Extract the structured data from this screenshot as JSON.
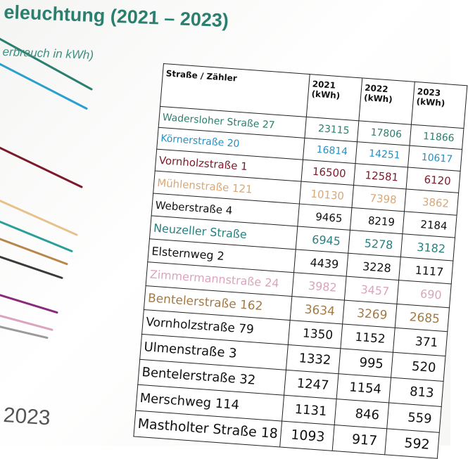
{
  "title": "eleuchtung (2021 – 2023)",
  "subtitle": "erbrauch in kWh)",
  "chart_x_label": "2023",
  "chart_data": {
    "type": "table",
    "columns": [
      "Straße / Zähler",
      "2021 (kWh)",
      "2022 (kWh)",
      "2023 (kWh)"
    ],
    "rows": [
      {
        "name": "Wadersloher Straße 27",
        "v2021": "23115",
        "v2022": "17806",
        "v2023": "11866",
        "color": "#2a7f6f"
      },
      {
        "name": "Körnerstraße 20",
        "v2021": "16814",
        "v2022": "14251",
        "v2023": "10617",
        "color": "#2a8fc0"
      },
      {
        "name": "Vornholzstraße 1",
        "v2021": "16500",
        "v2022": "12581",
        "v2023": "6120",
        "color": "#7a1a2a"
      },
      {
        "name": "Mühlenstraße 121",
        "v2021": "10130",
        "v2022": "7398",
        "v2023": "3862",
        "color": "#d8a878"
      },
      {
        "name": "Weberstraße 4",
        "v2021": "9465",
        "v2022": "8219",
        "v2023": "2184",
        "color": "#111111"
      },
      {
        "name": "Neuzeller Straße",
        "v2021": "6945",
        "v2022": "5278",
        "v2023": "3182",
        "color": "#2a7f80"
      },
      {
        "name": "Elsternweg 2",
        "v2021": "4439",
        "v2022": "3228",
        "v2023": "1117",
        "color": "#111111"
      },
      {
        "name": "Zimmermannstraße 24",
        "v2021": "3982",
        "v2022": "3457",
        "v2023": "690",
        "color": "#dba3bd"
      },
      {
        "name": "Bentelerstraße 162",
        "v2021": "3634",
        "v2022": "3269",
        "v2023": "2685",
        "color": "#a27a46"
      },
      {
        "name": "Vornholzstraße 79",
        "v2021": "1350",
        "v2022": "1152",
        "v2023": "371",
        "color": "#111111"
      },
      {
        "name": "Ulmenstraße 3",
        "v2021": "1332",
        "v2022": "995",
        "v2023": "520",
        "color": "#111111"
      },
      {
        "name": "Bentelerstraße 32",
        "v2021": "1247",
        "v2022": "1154",
        "v2023": "813",
        "color": "#111111"
      },
      {
        "name": "Merschweg 114",
        "v2021": "1131",
        "v2022": "846",
        "v2023": "559",
        "color": "#111111"
      },
      {
        "name": "Mastholter Straße 18",
        "v2021": "1093",
        "v2022": "917",
        "v2023": "592",
        "color": "#111111"
      }
    ]
  },
  "chart_lines": [
    {
      "color": "#2a7f6f",
      "value_2023": 11866
    },
    {
      "color": "#2a9fd0",
      "value_2023": 10617
    },
    {
      "color": "#7a1a2a",
      "value_2023": 6120
    },
    {
      "color": "#e8c08a",
      "value_2023": 3862
    },
    {
      "color": "#2a9f9a",
      "value_2023": 3182
    },
    {
      "color": "#b8864a",
      "value_2023": 2685
    },
    {
      "color": "#3a3a3a",
      "value_2023": 2184
    },
    {
      "color": "#8a2a7a",
      "value_2023": 1117
    },
    {
      "color": "#dba3bd",
      "value_2023": 690
    },
    {
      "color": "#9a9a9a",
      "value_2023": 520
    }
  ]
}
